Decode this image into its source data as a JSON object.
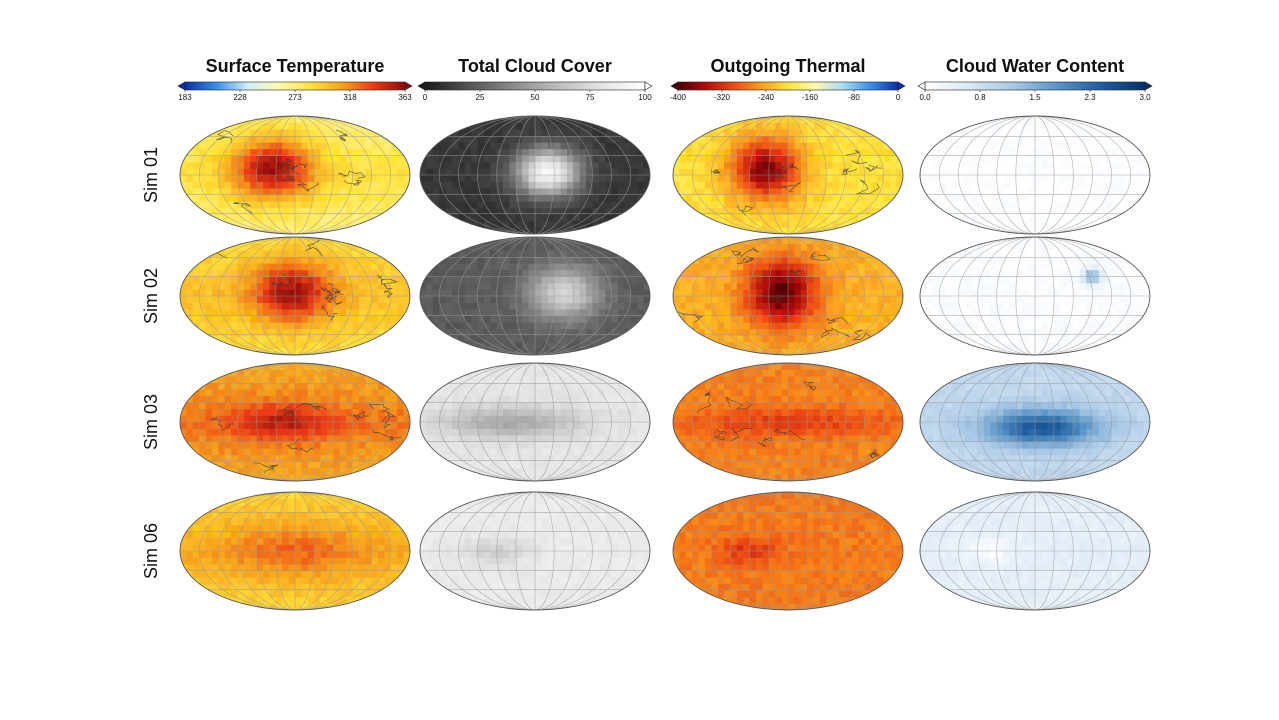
{
  "chart_data": {
    "type": "heatmap",
    "rows": [
      "Sim 01",
      "Sim 02",
      "Sim 03",
      "Sim 06"
    ],
    "panels": [
      {
        "title": "Surface Temperature",
        "colormap": "temperature",
        "ticks": [
          "183",
          "228",
          "273",
          "318",
          "363"
        ],
        "range": [
          183,
          363
        ],
        "colors": [
          "#0a2ea8",
          "#3a8ee8",
          "#cfeffa",
          "#fff9b0",
          "#ffe23a",
          "#f7a21c",
          "#ea3a16",
          "#8e0a0a"
        ]
      },
      {
        "title": "Total Cloud Cover",
        "colormap": "gray",
        "ticks": [
          "0",
          "25",
          "50",
          "75",
          "100"
        ],
        "range": [
          0,
          100
        ],
        "colors": [
          "#1a1a1a",
          "#555555",
          "#8a8a8a",
          "#bcbcbc",
          "#e4e4e4",
          "#ffffff"
        ]
      },
      {
        "title": "Outgoing Thermal",
        "colormap": "olr",
        "ticks": [
          "-400",
          "-320",
          "-240",
          "-160",
          "-80",
          "0"
        ],
        "range": [
          -400,
          0
        ],
        "colors": [
          "#4a0000",
          "#b00c0c",
          "#ec4a14",
          "#fb9a1c",
          "#ffe43a",
          "#fff9b0",
          "#a8dcf2",
          "#3a8ee8",
          "#0a2ea8"
        ]
      },
      {
        "title": "Cloud Water Content",
        "colormap": "blues",
        "ticks": [
          "0.0",
          "0.8",
          "1.5",
          "2.3",
          "3.0"
        ],
        "range": [
          0,
          3
        ],
        "colors": [
          "#ffffff",
          "#dce9f6",
          "#a8c8e6",
          "#5b95c8",
          "#1f5d9e",
          "#08306b"
        ]
      }
    ],
    "fields": {
      "Sim 01": [
        {
          "base": 285,
          "hotspot": {
            "lon": -35,
            "lat": 12,
            "rlon": 65,
            "rlat": 48,
            "amp": 75
          },
          "coast": true
        },
        {
          "base": 10,
          "hotspot": {
            "lon": 20,
            "lat": 5,
            "rlon": 48,
            "rlat": 35,
            "amp": 85
          },
          "coast": false
        },
        {
          "base": -200,
          "hotspot": {
            "lon": -35,
            "lat": 10,
            "rlon": 55,
            "rlat": 48,
            "amp": -170
          },
          "coast": true
        },
        {
          "base": 0.05,
          "hotspot": {
            "lon": 0,
            "lat": 0,
            "rlon": 60,
            "rlat": 30,
            "amp": 0
          },
          "coast": false
        }
      ],
      "Sim 02": [
        {
          "base": 300,
          "hotspot": {
            "lon": -5,
            "lat": 8,
            "rlon": 62,
            "rlat": 48,
            "amp": 60
          },
          "coast": true
        },
        {
          "base": 22,
          "hotspot": {
            "lon": 45,
            "lat": 5,
            "rlon": 55,
            "rlat": 40,
            "amp": 50
          },
          "coast": false
        },
        {
          "base": -235,
          "hotspot": {
            "lon": -10,
            "lat": 5,
            "rlon": 55,
            "rlat": 52,
            "amp": -155
          },
          "coast": true
        },
        {
          "base": 0.08,
          "hotspot": {
            "lon": 90,
            "lat": 30,
            "rlon": 15,
            "rlat": 12,
            "amp": 1.5
          },
          "coast": false
        }
      ],
      "Sim 03": [
        {
          "base": 322,
          "hotspot": {
            "lon": -20,
            "lat": 0,
            "rlon": 80,
            "rlat": 28,
            "amp": 30
          },
          "coast": true
        },
        {
          "base": 82,
          "hotspot": {
            "lon": -40,
            "lat": 0,
            "rlon": 110,
            "rlat": 25,
            "amp": -30
          },
          "coast": false
        },
        {
          "base": -265,
          "hotspot": {
            "lon": 0,
            "lat": 0,
            "rlon": 170,
            "rlat": 22,
            "amp": -45
          },
          "coast": true
        },
        {
          "base": 0.9,
          "hotspot": {
            "lon": 10,
            "lat": -8,
            "rlon": 90,
            "rlat": 28,
            "amp": 1.6
          },
          "coast": false
        }
      ],
      "Sim 06": [
        {
          "base": 305,
          "hotspot": {
            "lon": 0,
            "lat": 0,
            "rlon": 120,
            "rlat": 45,
            "amp": 22
          },
          "coast": false
        },
        {
          "base": 85,
          "hotspot": {
            "lon": -60,
            "lat": 0,
            "rlon": 55,
            "rlat": 22,
            "amp": -15
          },
          "coast": false
        },
        {
          "base": -270,
          "hotspot": {
            "lon": -60,
            "lat": 0,
            "rlon": 45,
            "rlat": 22,
            "amp": -45
          },
          "coast": false
        },
        {
          "base": 0.45,
          "hotspot": {
            "lon": -70,
            "lat": 0,
            "rlon": 35,
            "rlat": 18,
            "amp": -0.4
          },
          "coast": false
        }
      ]
    }
  }
}
